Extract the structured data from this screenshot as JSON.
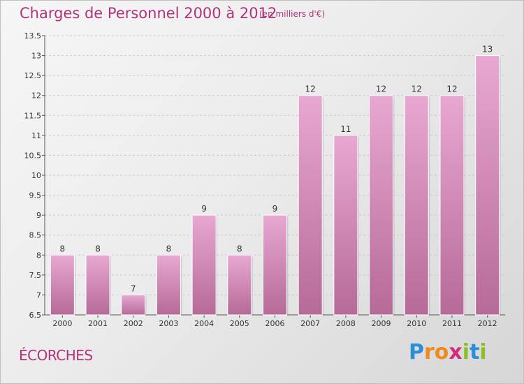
{
  "header": {
    "title": "Charges de Personnel 2000 à 2012",
    "subtitle": "(en milliers d'€)"
  },
  "footer": {
    "commune": "ÉCORCHES",
    "logo_text": "Proxiti",
    "logo_letters": [
      {
        "char": "P",
        "color": "#2a8fd6"
      },
      {
        "char": "r",
        "color": "#f08a1c"
      },
      {
        "char": "o",
        "color": "#f08a1c"
      },
      {
        "char": "x",
        "color": "#d22c7c"
      },
      {
        "char": "i",
        "color": "#8bbf2a"
      },
      {
        "char": "t",
        "color": "#2a8fd6"
      },
      {
        "char": "i",
        "color": "#8bbf2a"
      }
    ]
  },
  "colors": {
    "accent": "#b0337a",
    "bar_top": "#e8a8d2",
    "bar_bottom": "#b66a98",
    "bar_edge": "#ffffff"
  },
  "chart_data": {
    "type": "bar",
    "categories": [
      "2000",
      "2001",
      "2002",
      "2003",
      "2004",
      "2005",
      "2006",
      "2007",
      "2008",
      "2009",
      "2010",
      "2011",
      "2012"
    ],
    "values": [
      8,
      8,
      7,
      8,
      9,
      8,
      9,
      12,
      11,
      12,
      12,
      12,
      13
    ],
    "ylim": [
      6.5,
      13.5
    ],
    "yticks": [
      6.5,
      7,
      7.5,
      8,
      8.5,
      9,
      9.5,
      10,
      10.5,
      11,
      11.5,
      12,
      12.5,
      13,
      13.5
    ],
    "grid": true,
    "data_labels": true
  }
}
